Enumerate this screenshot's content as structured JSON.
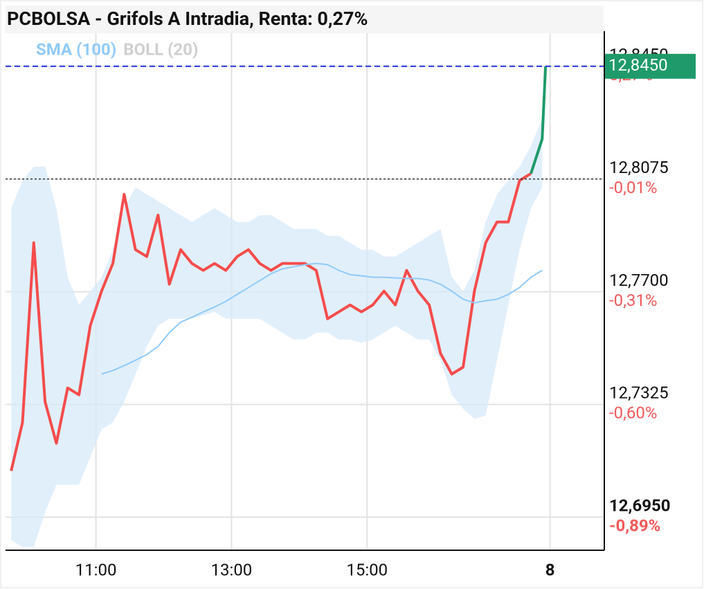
{
  "chart_data": {
    "type": "line",
    "title": "PCBOLSA - Grifols A Intradia, Renta: 0,27%",
    "x": [
      585,
      595,
      605,
      615,
      625,
      635,
      645,
      655,
      665,
      675,
      685,
      695,
      705,
      715,
      725,
      735,
      745,
      755,
      765,
      775,
      785,
      795,
      805,
      815,
      825,
      835,
      845,
      855,
      865,
      875,
      885,
      895,
      905,
      915,
      925,
      935,
      945,
      955,
      965,
      975,
      985,
      995,
      1005,
      1015,
      1025,
      1035,
      1045,
      1055,
      1058
    ],
    "series": [
      {
        "color": "#f44c4c",
        "up_color": "#1f9a6a",
        "values": [
          12.7104,
          12.7265,
          12.7863,
          12.7334,
          12.7196,
          12.738,
          12.7357,
          12.7587,
          12.7702,
          12.7794,
          12.8024,
          12.784,
          12.7817,
          12.7955,
          12.7725,
          12.784,
          12.7794,
          12.7771,
          12.7794,
          12.7771,
          12.7817,
          12.784,
          12.7794,
          12.7771,
          12.7794,
          12.7794,
          12.7794,
          12.7771,
          12.761,
          12.7633,
          12.7656,
          12.7633,
          12.7656,
          12.7702,
          12.7656,
          12.7771,
          12.7702,
          12.7656,
          12.7495,
          12.7426,
          12.7449,
          12.7702,
          12.7863,
          12.7932,
          12.7932,
          12.807,
          12.8093,
          12.8208,
          12.845
        ]
      },
      {
        "name": "SMA (100)",
        "color": "#90caf9",
        "values": [
          null,
          null,
          null,
          null,
          null,
          null,
          null,
          null,
          12.7426,
          12.7438,
          12.7454,
          12.7472,
          12.7491,
          12.7518,
          12.7564,
          12.7599,
          12.7615,
          12.7633,
          12.7649,
          12.7668,
          12.7691,
          12.7714,
          12.7737,
          12.776,
          12.7776,
          12.7783,
          12.779,
          12.7794,
          12.779,
          12.7771,
          12.7757,
          12.7753,
          12.7748,
          12.7748,
          12.7746,
          12.7744,
          12.7744,
          12.7739,
          12.7725,
          12.7702,
          12.7675,
          12.7663,
          12.767,
          12.7675,
          12.7691,
          12.7714,
          12.7748,
          12.7771,
          null
        ]
      },
      {
        "name": "BOLL (20)",
        "color": "#cfcfcf",
        "fill": "#d7eaf9",
        "upper": [
          12.7978,
          12.807,
          12.8116,
          12.8116,
          12.7978,
          12.7748,
          12.7656,
          12.7702,
          12.7748,
          12.784,
          12.7978,
          12.8047,
          12.8024,
          12.8001,
          12.7978,
          12.7955,
          12.7932,
          12.7955,
          12.7978,
          12.7955,
          12.7932,
          12.7932,
          12.7955,
          12.7955,
          12.7932,
          12.7909,
          12.7909,
          12.7909,
          12.7886,
          12.7886,
          12.7863,
          12.784,
          12.784,
          12.7817,
          12.7817,
          12.784,
          12.7863,
          12.7886,
          12.7909,
          12.7748,
          12.7702,
          12.7771,
          12.7932,
          12.8024,
          12.807,
          12.8116,
          12.8185,
          12.8277,
          null
        ],
        "lower": [
          12.6874,
          12.6851,
          12.6851,
          12.6966,
          12.7058,
          12.7058,
          12.7058,
          12.715,
          12.7242,
          12.7265,
          12.7334,
          12.7426,
          12.7518,
          12.7587,
          12.761,
          12.761,
          12.761,
          12.7622,
          12.7633,
          12.761,
          12.761,
          12.761,
          12.761,
          12.7587,
          12.7564,
          12.7541,
          12.7541,
          12.7564,
          12.7564,
          12.7541,
          12.7541,
          12.753,
          12.7541,
          12.7564,
          12.7587,
          12.7564,
          12.7541,
          12.7541,
          12.7472,
          12.7357,
          12.7311,
          12.7277,
          12.7288,
          12.7472,
          12.7656,
          12.784,
          12.7978,
          12.8047,
          null
        ]
      }
    ],
    "reference_value": 12.8075,
    "price_tag": {
      "value": 12.845,
      "label": "12,8450",
      "color": "#1f9a6a"
    },
    "xlim": [
      580,
      1110
    ],
    "xticks": [
      {
        "value": 660,
        "label": "11:00"
      },
      {
        "value": 780,
        "label": "13:00"
      },
      {
        "value": 900,
        "label": "15:00"
      },
      {
        "value": 1062,
        "label": "8"
      }
    ],
    "ylim": [
      12.684,
      12.856
    ],
    "yticks": [
      {
        "value": 12.695,
        "label": "12,6950"
      },
      {
        "value": 12.7325,
        "label": "12,7325"
      },
      {
        "value": 12.77,
        "label": "12,7700"
      },
      {
        "value": 12.8075,
        "label": "12,8075"
      },
      {
        "value": 12.845,
        "label": "12,8450"
      }
    ],
    "ytick_sublabels": [
      "-0,89%",
      "-0,60%",
      "-0,31%",
      "-0,01%",
      "0,27%"
    ],
    "grid": true
  }
}
